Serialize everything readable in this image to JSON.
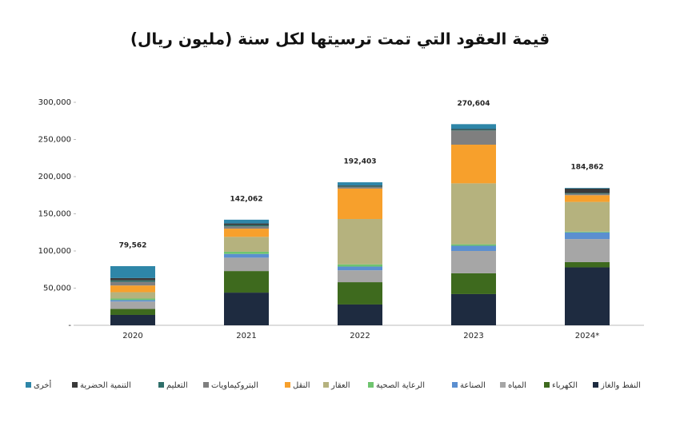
{
  "chart_data": {
    "type": "stacked-bar",
    "title": "قيمة العقود التي تمت ترسيتها لكل سنة (مليون ريال)",
    "categories": [
      "2020",
      "2021",
      "2022",
      "2023",
      "2024*"
    ],
    "ylim": [
      0,
      300000
    ],
    "yticks": [
      {
        "value": 0,
        "label": "-"
      },
      {
        "value": 50000,
        "label": "50,000"
      },
      {
        "value": 100000,
        "label": "100,000"
      },
      {
        "value": 150000,
        "label": "150,000"
      },
      {
        "value": 200000,
        "label": "200,000"
      },
      {
        "value": 250000,
        "label": "250,000"
      },
      {
        "value": 300000,
        "label": "300,000"
      }
    ],
    "totals": [
      79562,
      142062,
      192403,
      270604,
      184862
    ],
    "total_labels": [
      "79,562",
      "142,062",
      "192,403",
      "270,604",
      "184,862"
    ],
    "series": [
      {
        "name": "النفط والغاز",
        "color": "#1e2b40",
        "values": [
          14000,
          44000,
          28000,
          42000,
          78000
        ]
      },
      {
        "name": "الكهرباء",
        "color": "#3e6a1e",
        "values": [
          8000,
          29000,
          30000,
          28000,
          7000
        ]
      },
      {
        "name": "المياه",
        "color": "#a6a6a6",
        "values": [
          10000,
          18000,
          16000,
          30000,
          31000
        ]
      },
      {
        "name": "الصناعة",
        "color": "#5b8fd0",
        "values": [
          2000,
          5000,
          5000,
          7000,
          9000
        ]
      },
      {
        "name": "الرعاية الصحية",
        "color": "#6fc46f",
        "values": [
          2000,
          3000,
          3000,
          2000,
          1000
        ]
      },
      {
        "name": "العقار",
        "color": "#b5b27e",
        "values": [
          8562,
          20000,
          61000,
          82000,
          40000
        ]
      },
      {
        "name": "النقل",
        "color": "#f7a02c",
        "values": [
          9000,
          11000,
          41000,
          52000,
          9000
        ]
      },
      {
        "name": "البتروكيماويات",
        "color": "#7f7f7f",
        "values": [
          5000,
          3000,
          2000,
          19000,
          2000
        ]
      },
      {
        "name": "التعليم",
        "color": "#2f6f6a",
        "values": [
          2000,
          2000,
          1000,
          1000,
          1000
        ]
      },
      {
        "name": "التنمية الحضرية",
        "color": "#3a3a3a",
        "values": [
          3000,
          2000,
          1000,
          1000,
          6000
        ]
      },
      {
        "name": "أخرى",
        "color": "#2e86a8",
        "values": [
          16000,
          5062,
          4403,
          6604,
          862
        ]
      }
    ]
  }
}
